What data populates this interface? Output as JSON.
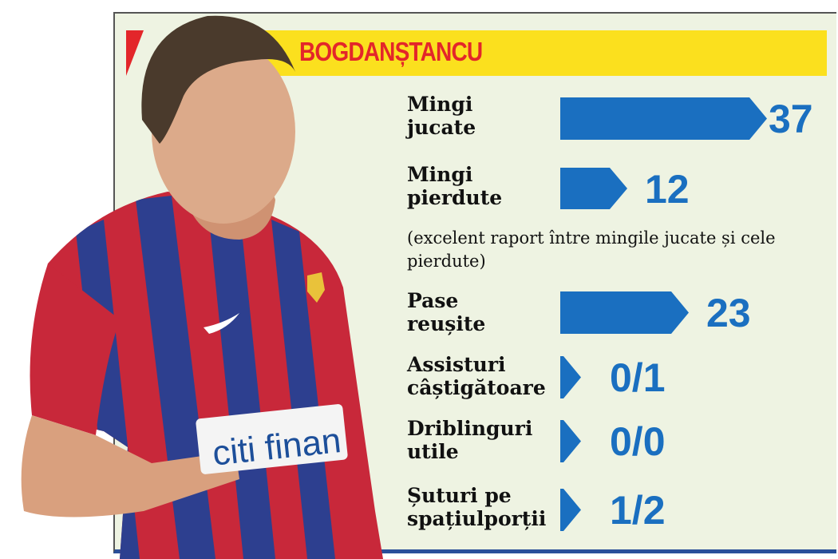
{
  "title": "BOGDANȘTANCU",
  "note": "(excelent raport între mingile jucate și cele pierdute)",
  "colors": {
    "banner": "#fbe01e",
    "title": "#e3262a",
    "bar": "#1a6fc0",
    "background": "#eef3e2"
  },
  "photo": {
    "description_icon": "player-photo",
    "sponsor_text": "citi finan"
  },
  "chart_data": {
    "type": "bar",
    "orientation": "horizontal",
    "categories": [
      "Mingi jucate",
      "Mingi pierdute",
      "Pase reușite",
      "Assisturi câștigătoare",
      "Driblinguri utile",
      "Șuturi pe spațiulporții"
    ],
    "label_lines": [
      [
        "Mingi",
        "jucate"
      ],
      [
        "Mingi",
        "pierdute"
      ],
      [
        "Pase",
        "reușite"
      ],
      [
        "Assisturi",
        "câștigătoare"
      ],
      [
        "Driblinguri",
        "utile"
      ],
      [
        "Șuturi pe",
        "spațiulporții"
      ]
    ],
    "values": [
      37,
      12,
      23,
      "0/1",
      "0/0",
      "1/2"
    ],
    "value_labels": [
      "37",
      "12",
      "23",
      "0/1",
      "0/0",
      "1/2"
    ]
  }
}
